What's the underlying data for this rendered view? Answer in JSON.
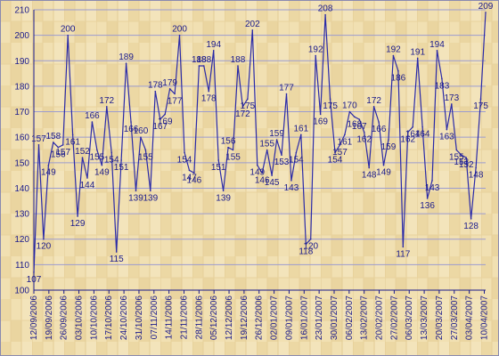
{
  "chart_data": {
    "type": "line",
    "title": "",
    "xlabel": "",
    "ylabel": "",
    "ylim": [
      100,
      210
    ],
    "yticks": [
      100,
      110,
      120,
      130,
      140,
      150,
      160,
      170,
      180,
      190,
      200,
      210
    ],
    "xtick_labels": [
      "12/09/2006",
      "19/09/2006",
      "26/09/2006",
      "03/10/2006",
      "10/10/2006",
      "17/10/2006",
      "24/10/2006",
      "31/10/2006",
      "07/11/2006",
      "14/11/2006",
      "21/11/2006",
      "28/11/2006",
      "05/12/2006",
      "12/12/2006",
      "19/12/2006",
      "26/12/2006",
      "02/01/2007",
      "09/01/2007",
      "16/01/2007",
      "23/01/2007",
      "30/01/2007",
      "06/02/2007",
      "13/02/2007",
      "20/02/2007",
      "27/02/2007",
      "06/03/2007",
      "13/03/2007",
      "20/03/2007",
      "27/03/2007",
      "03/04/2007",
      "10/04/2007"
    ],
    "grid": true,
    "series": [
      {
        "values": [
          107,
          157,
          120,
          149,
          158,
          156,
          157,
          200,
          161,
          129,
          152,
          144,
          166,
          155,
          149,
          172,
          154,
          115,
          151,
          189,
          166,
          139,
          160,
          155,
          139,
          178,
          167,
          169,
          179,
          177,
          200,
          154,
          147,
          146,
          188,
          188,
          178,
          194,
          151,
          139,
          156,
          155,
          188,
          172,
          175,
          202,
          149,
          146,
          155,
          145,
          159,
          153,
          177,
          143,
          154,
          161,
          118,
          120,
          192,
          169,
          208,
          175,
          154,
          157,
          161,
          170,
          168,
          167,
          162,
          148,
          172,
          166,
          149,
          159,
          192,
          186,
          117,
          162,
          164,
          191,
          164,
          136,
          143,
          194,
          183,
          163,
          173,
          155,
          153,
          152,
          128,
          148,
          175,
          209
        ]
      }
    ]
  }
}
